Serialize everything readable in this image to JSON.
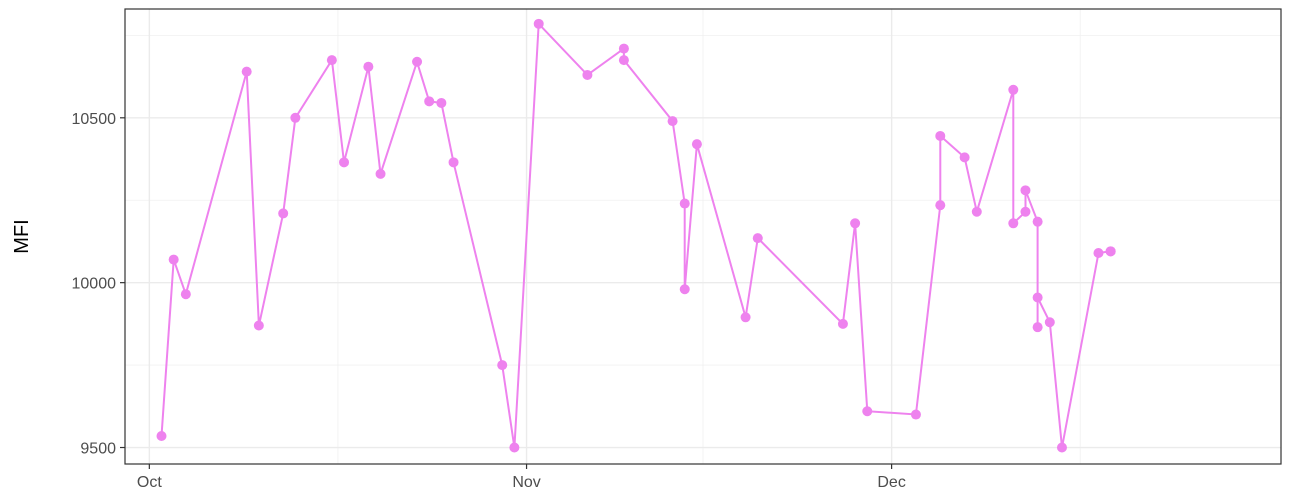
{
  "chart_data": {
    "type": "line",
    "title": "",
    "xlabel": "",
    "ylabel": "MFI",
    "x_ticks": [
      {
        "label": "Oct",
        "date": "2023-10-01"
      },
      {
        "label": "Nov",
        "date": "2023-11-01"
      },
      {
        "label": "Dec",
        "date": "2023-12-01"
      }
    ],
    "y_ticks": [
      9500,
      10000,
      10500
    ],
    "xlim": [
      "2023-09-29",
      "2024-01-02"
    ],
    "ylim": [
      9450,
      10830
    ],
    "grid": true,
    "markers": true,
    "color": "#EE82EE",
    "series": [
      {
        "x": [
          "2023-10-02",
          "2023-10-03",
          "2023-10-04",
          "2023-10-09",
          "2023-10-10",
          "2023-10-12",
          "2023-10-13",
          "2023-10-16",
          "2023-10-17",
          "2023-10-19",
          "2023-10-20",
          "2023-10-23",
          "2023-10-24",
          "2023-10-25",
          "2023-10-26",
          "2023-10-30",
          "2023-10-31",
          "2023-11-02",
          "2023-11-06",
          "2023-11-09",
          "2023-11-09",
          "2023-11-13",
          "2023-11-14",
          "2023-11-14",
          "2023-11-15",
          "2023-11-19",
          "2023-11-20",
          "2023-11-27",
          "2023-11-28",
          "2023-11-29",
          "2023-12-03",
          "2023-12-05",
          "2023-12-05",
          "2023-12-07",
          "2023-12-08",
          "2023-12-11",
          "2023-12-11",
          "2023-12-12",
          "2023-12-12",
          "2023-12-13",
          "2023-12-13",
          "2023-12-13",
          "2023-12-14",
          "2023-12-15",
          "2023-12-18",
          "2023-12-19",
          "2023-12-19"
        ],
        "y": [
          9535,
          10070,
          9965,
          10640,
          9870,
          10210,
          10500,
          10675,
          10365,
          10655,
          10330,
          10670,
          10550,
          10545,
          10365,
          9750,
          9500,
          10785,
          10630,
          10710,
          10675,
          10490,
          10240,
          9980,
          10420,
          9895,
          10135,
          9875,
          10180,
          9610,
          9600,
          10235,
          10445,
          10380,
          10215,
          10585,
          10180,
          10215,
          10280,
          10185,
          9865,
          9955,
          9880,
          9500,
          10090,
          10095,
          10095
        ]
      }
    ]
  }
}
